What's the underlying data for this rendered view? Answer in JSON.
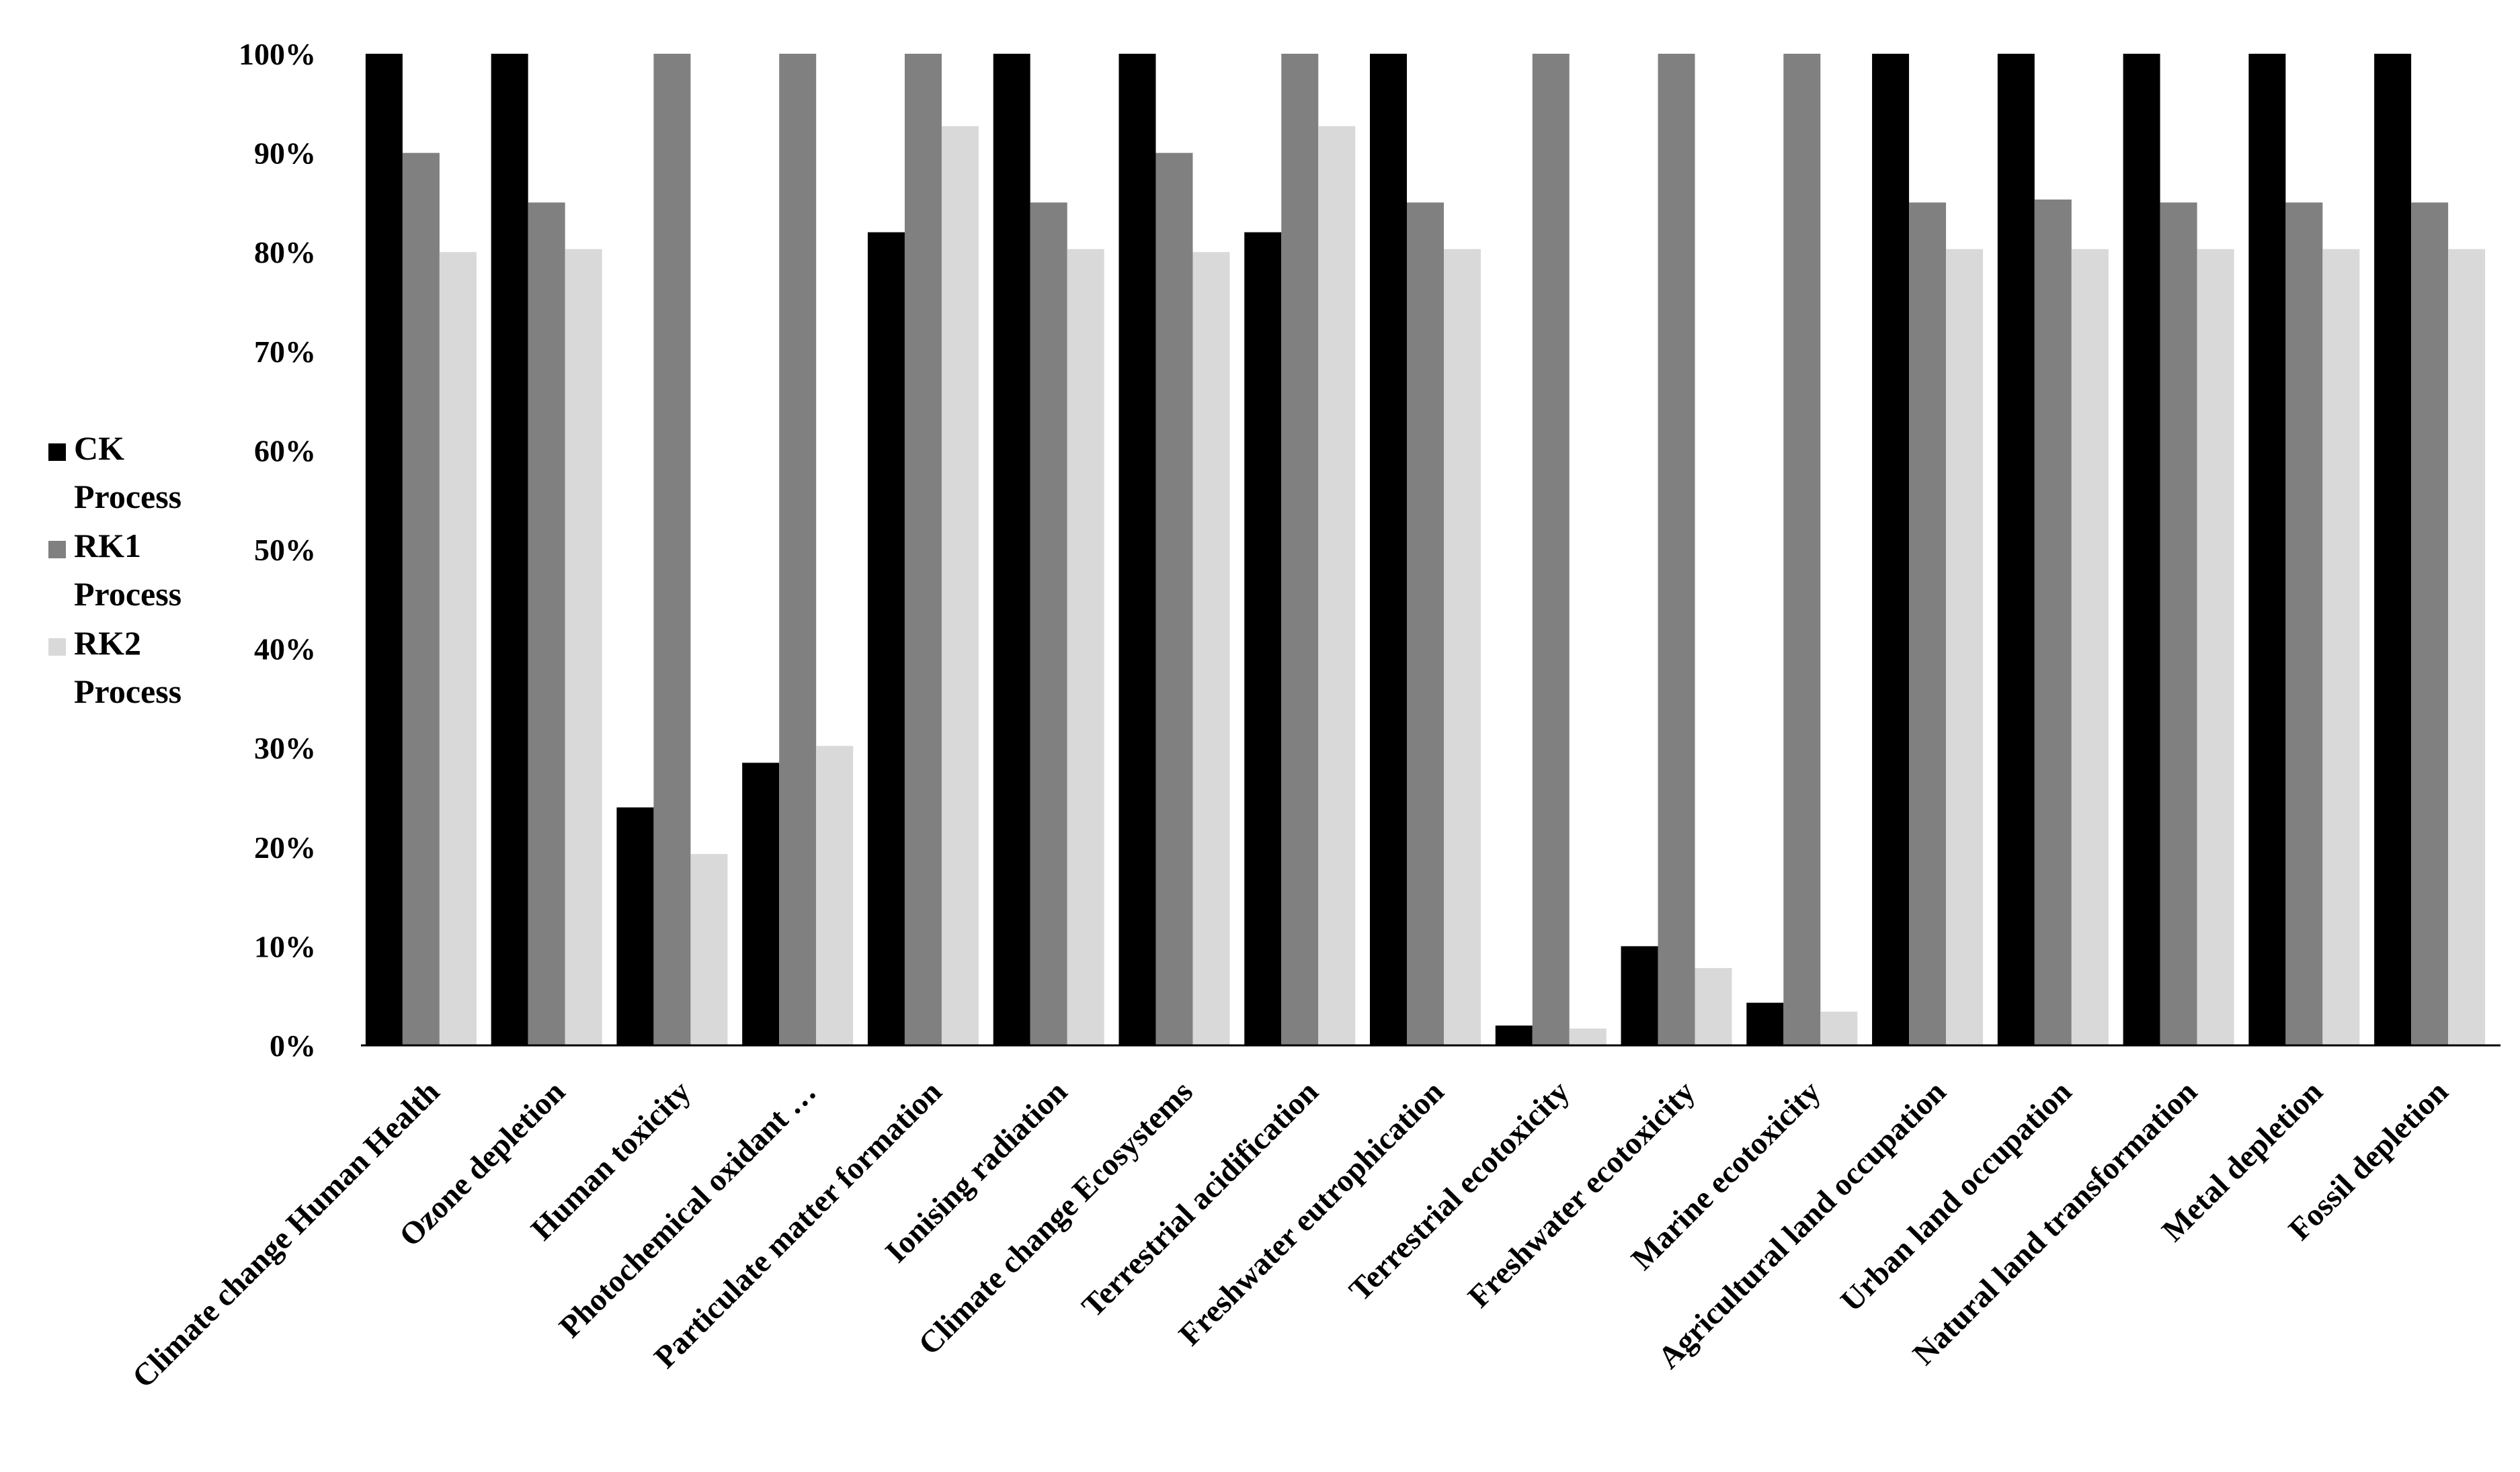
{
  "chart_data": {
    "type": "bar",
    "categories": [
      "Climate change Human Health",
      "Ozone depletion",
      "Human toxicity",
      "Photochemical oxidant …",
      "Particulate matter formation",
      "Ionising radiation",
      "Climate change Ecosystems",
      "Terrestrial acidification",
      "Freshwater eutrophication",
      "Terrestrial ecotoxicity",
      "Freshwater ecotoxicity",
      "Marine ecotoxicity",
      "Agricultural land occupation",
      "Urban land occupation",
      "Natural land transformation",
      "Metal depletion",
      "Fossil depletion"
    ],
    "series": [
      {
        "name": "CK Process",
        "name_lines": [
          "CK",
          "Process"
        ],
        "color": "#000000",
        "values": [
          100,
          100,
          24,
          28.5,
          82,
          100,
          100,
          82,
          100,
          2,
          10,
          4.3,
          100,
          100,
          100,
          100,
          100
        ]
      },
      {
        "name": "RK1 Process",
        "name_lines": [
          "RK1",
          "Process"
        ],
        "color": "#808080",
        "values": [
          90,
          85,
          100,
          100,
          100,
          85,
          90,
          100,
          85,
          100,
          100,
          100,
          85,
          85.3,
          85,
          85,
          85
        ]
      },
      {
        "name": "RK2 Process",
        "name_lines": [
          "RK2",
          "Process"
        ],
        "color": "#d9d9d9",
        "values": [
          80,
          80.3,
          19.3,
          30.2,
          92.7,
          80.3,
          80,
          92.7,
          80.3,
          1.7,
          7.8,
          3.4,
          80.3,
          80.3,
          80.3,
          80.3,
          80.3
        ]
      }
    ],
    "yticks": [
      "0%",
      "10%",
      "20%",
      "30%",
      "40%",
      "50%",
      "60%",
      "70%",
      "80%",
      "90%",
      "100%"
    ],
    "ylim": [
      0,
      100
    ],
    "grid": false,
    "legend_position": "left",
    "xlabel": "",
    "ylabel": "",
    "title": ""
  }
}
